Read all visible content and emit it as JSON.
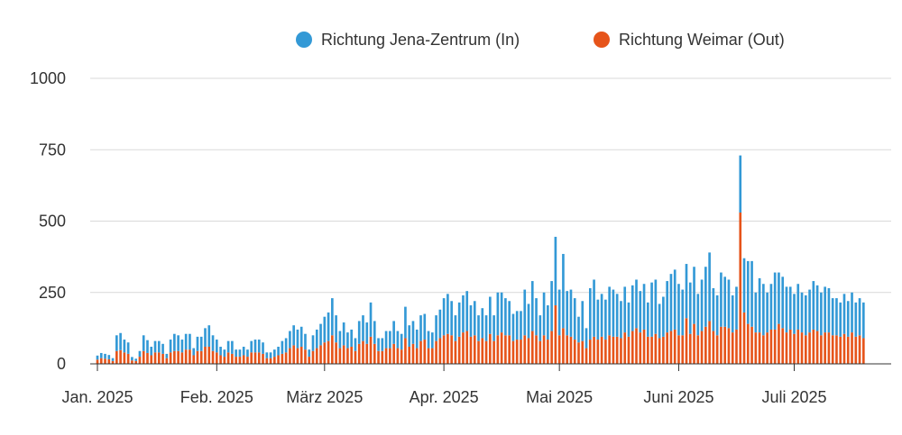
{
  "chart_data": {
    "type": "bar",
    "stacked": true,
    "legend": {
      "placement": "top-right",
      "items": [
        {
          "label": "Richtung Jena-Zentrum (In)",
          "color": "#3399d6"
        },
        {
          "label": "Richtung Weimar (Out)",
          "color": "#e6541a"
        }
      ]
    },
    "y_ticks": [
      "0",
      "250",
      "500",
      "750",
      "1000"
    ],
    "y_tick_values": [
      0,
      250,
      500,
      750,
      1000
    ],
    "ylim": [
      0,
      1000
    ],
    "grid": true,
    "x_ticks": [
      {
        "label": "Jan. 2025",
        "day": 0
      },
      {
        "label": "Feb. 2025",
        "day": 31
      },
      {
        "label": "März 2025",
        "day": 59
      },
      {
        "label": "Apr. 2025",
        "day": 90
      },
      {
        "label": "Mai 2025",
        "day": 120
      },
      {
        "label": "Juni 2025",
        "day": 151
      },
      {
        "label": "Juli 2025",
        "day": 181
      }
    ],
    "x_range": [
      "2025-01-01",
      "2025-07-31"
    ],
    "series": [
      {
        "name": "Richtung Jena-Zentrum (In)",
        "color": "#3399d6",
        "values": [
          14,
          18,
          17,
          15,
          10,
          55,
          60,
          45,
          40,
          12,
          8,
          20,
          55,
          45,
          30,
          40,
          40,
          35,
          15,
          45,
          60,
          55,
          45,
          55,
          55,
          25,
          50,
          50,
          65,
          75,
          55,
          45,
          30,
          25,
          40,
          45,
          25,
          25,
          30,
          25,
          40,
          45,
          45,
          40,
          20,
          20,
          25,
          30,
          45,
          50,
          60,
          70,
          65,
          70,
          55,
          25,
          55,
          65,
          75,
          90,
          100,
          130,
          95,
          60,
          80,
          55,
          60,
          45,
          80,
          90,
          75,
          120,
          80,
          45,
          45,
          60,
          60,
          80,
          60,
          55,
          110,
          75,
          80,
          65,
          90,
          90,
          60,
          55,
          90,
          100,
          130,
          140,
          120,
          90,
          120,
          130,
          140,
          110,
          120,
          90,
          105,
          90,
          130,
          90,
          150,
          140,
          130,
          120,
          95,
          100,
          100,
          160,
          120,
          175,
          130,
          90,
          150,
          120,
          175,
          240,
          160,
          260,
          155,
          165,
          145,
          90,
          140,
          70,
          180,
          200,
          140,
          150,
          140,
          170,
          165,
          150,
          130,
          160,
          120,
          160,
          170,
          145,
          160,
          120,
          190,
          190,
          120,
          140,
          180,
          200,
          210,
          180,
          160,
          190,
          180,
          200,
          145,
          180,
          210,
          240,
          150,
          140,
          190,
          175,
          170,
          130,
          150,
          200,
          190,
          220,
          230,
          140,
          190,
          180,
          140,
          160,
          200,
          180,
          180,
          160,
          150,
          140,
          160,
          140,
          140,
          150,
          170,
          160,
          150,
          160,
          155,
          130,
          130,
          120,
          140,
          125,
          140,
          120,
          130,
          125
        ]
      },
      {
        "name": "Richtung Weimar (Out)",
        "color": "#e6541a",
        "values": [
          15,
          20,
          18,
          16,
          10,
          45,
          48,
          40,
          35,
          12,
          10,
          25,
          45,
          38,
          30,
          40,
          40,
          35,
          20,
          40,
          45,
          45,
          40,
          50,
          50,
          30,
          45,
          45,
          60,
          60,
          45,
          40,
          30,
          25,
          40,
          35,
          25,
          25,
          30,
          25,
          40,
          40,
          40,
          35,
          20,
          20,
          25,
          30,
          35,
          40,
          55,
          65,
          55,
          60,
          50,
          25,
          45,
          55,
          65,
          75,
          80,
          100,
          75,
          55,
          65,
          55,
          60,
          45,
          70,
          80,
          70,
          95,
          70,
          45,
          45,
          55,
          55,
          70,
          55,
          50,
          90,
          60,
          70,
          55,
          80,
          85,
          55,
          55,
          80,
          90,
          100,
          105,
          100,
          80,
          95,
          110,
          115,
          95,
          100,
          80,
          90,
          80,
          105,
          80,
          100,
          110,
          100,
          100,
          80,
          85,
          85,
          100,
          90,
          115,
          100,
          80,
          100,
          85,
          115,
          205,
          100,
          125,
          100,
          95,
          85,
          75,
          80,
          55,
          85,
          95,
          85,
          95,
          85,
          100,
          95,
          95,
          90,
          110,
          95,
          115,
          125,
          110,
          120,
          95,
          95,
          105,
          90,
          95,
          110,
          115,
          120,
          100,
          100,
          160,
          105,
          140,
          100,
          115,
          130,
          150,
          115,
          100,
          130,
          130,
          125,
          110,
          120,
          530,
          180,
          140,
          130,
          110,
          110,
          100,
          110,
          120,
          120,
          140,
          125,
          110,
          120,
          105,
          120,
          110,
          100,
          110,
          120,
          115,
          100,
          110,
          110,
          100,
          100,
          95,
          105,
          95,
          110,
          95,
          100,
          90
        ]
      }
    ]
  }
}
